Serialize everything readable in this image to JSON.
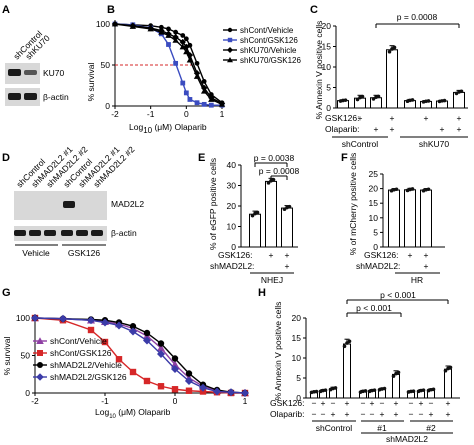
{
  "panels": {
    "A": {
      "letter": "A",
      "lanes": [
        "shControl",
        "shKU70"
      ],
      "bands": [
        "KU70",
        "β-actin"
      ]
    },
    "B": {
      "letter": "B",
      "xlabel_prefix": "Log",
      "xlabel_sub": "10",
      "xlabel_rest": " (μM) Olaparib",
      "ylabel": "% survival",
      "legend": [
        "shCont/Vehicle",
        "shCont/GSK126",
        "shKU70/Vehicle",
        "shKU70/GSK126"
      ]
    },
    "C": {
      "letter": "C",
      "ylabel": "% Annexin V positive cells",
      "pvalue": "p = 0.0008",
      "row_labels": [
        "GSK126:",
        "Olaparib:"
      ],
      "row_marks": [
        [
          "",
          "+",
          "",
          "+",
          "",
          "+",
          "",
          "+"
        ],
        [
          "",
          "",
          "+",
          "+",
          "",
          "",
          "+",
          "+"
        ]
      ],
      "groups": [
        "shControl",
        "shKU70"
      ]
    },
    "D": {
      "letter": "D",
      "lanes": [
        "shControl",
        "shMAD2L2 #1",
        "shMAD2L2 #2",
        "shControl",
        "shMAD2L2 #1",
        "shMAD2L2 #2"
      ],
      "bands": [
        "MAD2L2",
        "β-actin"
      ],
      "treatments": [
        "Vehicle",
        "GSK126"
      ]
    },
    "E": {
      "letter": "E",
      "ylabel": "% of eGFP positive cells",
      "pvalues": [
        "p = 0.0038",
        "p = 0.0008"
      ],
      "row_labels": [
        "GSK126:",
        "shMAD2L2:"
      ],
      "row_marks": [
        [
          "",
          "+",
          "+"
        ],
        [
          "",
          "",
          "+"
        ]
      ],
      "group": "NHEJ"
    },
    "F": {
      "letter": "F",
      "ylabel": "% of mCherry positive cells",
      "row_labels": [
        "GSK126:",
        "shMAD2L2:"
      ],
      "row_marks": [
        [
          "",
          "+",
          "+"
        ],
        [
          "",
          "",
          "+"
        ]
      ],
      "group": "HR"
    },
    "G": {
      "letter": "G",
      "xlabel_prefix": "Log",
      "xlabel_sub": "10",
      "xlabel_rest": " (μM) Olaparib",
      "ylabel": "% survival",
      "legend": [
        "shCont/Vehicle",
        "shCont/GSK126",
        "shMAD2L2/Vehicle",
        "shMAD2L2/GSK126"
      ]
    },
    "H": {
      "letter": "H",
      "ylabel": "% Annexin V positive cells",
      "pvalues": [
        "p < 0.001",
        "p < 0.001"
      ],
      "row_labels": [
        "GSK126:",
        "Olaparib:"
      ],
      "row_marks": [
        [
          "−",
          "+",
          "−",
          "+",
          "−",
          "+",
          "−",
          "+",
          "−",
          "+",
          "−",
          "+"
        ],
        [
          "−",
          "−",
          "+",
          "+",
          "−",
          "−",
          "+",
          "+",
          "−",
          "−",
          "+",
          "+"
        ]
      ],
      "groups": [
        "shControl",
        "#1",
        "#2"
      ],
      "group_super": "shMAD2L2"
    }
  },
  "chart_data": [
    {
      "panel": "B",
      "type": "line",
      "xlim": [
        -2,
        1
      ],
      "ylim": [
        0,
        100
      ],
      "xticks": [
        "-2",
        "-1",
        "0",
        "1"
      ],
      "yticks": [
        "0",
        "50",
        "100"
      ],
      "reference_line_y": 50,
      "x": [
        -2,
        -1.5,
        -1,
        -0.7,
        -0.5,
        -0.3,
        -0.1,
        0,
        0.1,
        0.3,
        0.5,
        0.7,
        1
      ],
      "series": [
        {
          "name": "shCont/Vehicle",
          "color": "#000000",
          "marker": "circle",
          "values": [
            100,
            99,
            98,
            96,
            94,
            90,
            86,
            82,
            74,
            52,
            30,
            14,
            4
          ]
        },
        {
          "name": "shCont/GSK126",
          "color": "#3b4cc0",
          "marker": "square",
          "values": [
            100,
            99,
            95,
            88,
            75,
            52,
            28,
            16,
            8,
            4,
            2,
            1,
            1
          ]
        },
        {
          "name": "shKU70/Vehicle",
          "color": "#000000",
          "marker": "diamond",
          "values": [
            100,
            98,
            95,
            92,
            88,
            84,
            78,
            72,
            62,
            40,
            22,
            10,
            3
          ]
        },
        {
          "name": "shKU70/GSK126",
          "color": "#000000",
          "marker": "triangle",
          "values": [
            100,
            97,
            94,
            90,
            86,
            80,
            72,
            66,
            56,
            36,
            18,
            8,
            2
          ]
        }
      ]
    },
    {
      "panel": "C",
      "type": "bar",
      "ylim": [
        0,
        20
      ],
      "yticks": [
        "0",
        "5",
        "10",
        "15",
        "20"
      ],
      "values": [
        1.8,
        2.4,
        2.5,
        14.2,
        1.8,
        1.6,
        1.7,
        3.8
      ],
      "errors": [
        0.2,
        0.7,
        0.6,
        1.0,
        0.3,
        0.2,
        0.2,
        0.5
      ]
    },
    {
      "panel": "E",
      "type": "bar",
      "ylim": [
        0,
        40
      ],
      "yticks": [
        "0",
        "10",
        "20",
        "30",
        "40"
      ],
      "values": [
        16,
        32,
        19
      ],
      "errors": [
        1.5,
        1.5,
        1.2
      ]
    },
    {
      "panel": "F",
      "type": "bar",
      "ylim": [
        0,
        25
      ],
      "yticks": [
        "0",
        "5",
        "10",
        "15",
        "20",
        "25"
      ],
      "values": [
        19.5,
        19.6,
        19.5
      ],
      "errors": [
        0.5,
        0.5,
        0.5
      ]
    },
    {
      "panel": "G",
      "type": "line",
      "xlim": [
        -2,
        1
      ],
      "ylim": [
        0,
        100
      ],
      "xticks": [
        "-2",
        "-1",
        "0",
        "1"
      ],
      "yticks": [
        "0",
        "50",
        "100"
      ],
      "x": [
        -2,
        -1.6,
        -1.2,
        -1,
        -0.8,
        -0.6,
        -0.4,
        -0.2,
        0,
        0.2,
        0.4,
        0.6,
        0.8,
        1
      ],
      "series": [
        {
          "name": "shCont/Vehicle",
          "color": "#8e3fa3",
          "marker": "triangle",
          "values": [
            100,
            99,
            97,
            95,
            92,
            86,
            76,
            60,
            38,
            20,
            9,
            3,
            1,
            0
          ]
        },
        {
          "name": "shCont/GSK126",
          "color": "#d62728",
          "marker": "square",
          "values": [
            100,
            97,
            84,
            68,
            45,
            28,
            16,
            9,
            5,
            3,
            2,
            1,
            0,
            0
          ]
        },
        {
          "name": "shMAD2L2/Vehicle",
          "color": "#000000",
          "marker": "circle",
          "values": [
            100,
            99,
            98,
            97,
            94,
            89,
            80,
            66,
            46,
            26,
            11,
            4,
            1,
            0
          ]
        },
        {
          "name": "shMAD2L2/GSK126",
          "color": "#3b3ba8",
          "marker": "diamond",
          "values": [
            100,
            99,
            97,
            94,
            90,
            82,
            70,
            52,
            32,
            16,
            7,
            2,
            1,
            0
          ]
        }
      ]
    },
    {
      "panel": "H",
      "type": "bar",
      "ylim": [
        0,
        20
      ],
      "yticks": [
        "0",
        "5",
        "10",
        "15",
        "20"
      ],
      "values": [
        1.5,
        1.8,
        2.3,
        13.5,
        1.6,
        1.8,
        2.2,
        5.9,
        1.6,
        1.8,
        2.0,
        7.2
      ],
      "errors": [
        0.2,
        0.3,
        0.4,
        1.2,
        0.3,
        0.3,
        0.3,
        0.9,
        0.2,
        0.3,
        0.3,
        0.8
      ]
    }
  ]
}
